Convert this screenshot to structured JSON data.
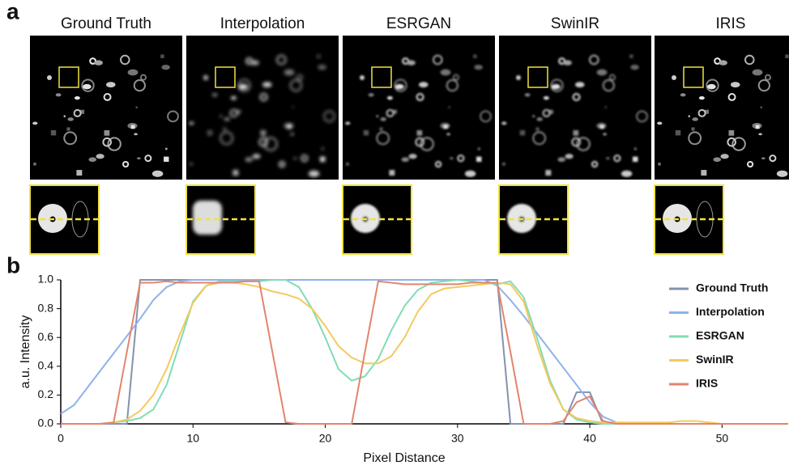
{
  "figure": {
    "panel_a": "a",
    "panel_b": "b",
    "image_titles": [
      "Ground Truth",
      "Interpolation",
      "ESRGAN",
      "SwinIR",
      "IRIS"
    ]
  },
  "chart_data": {
    "type": "line",
    "x_label": "Pixel Distance",
    "y_label": "a.u. Intensity",
    "x": [
      0,
      1,
      2,
      3,
      4,
      5,
      6,
      7,
      8,
      9,
      10,
      11,
      12,
      13,
      14,
      15,
      16,
      17,
      18,
      19,
      20,
      21,
      22,
      23,
      24,
      25,
      26,
      27,
      28,
      29,
      30,
      31,
      32,
      33,
      34,
      35,
      36,
      37,
      38,
      39,
      40,
      41,
      42,
      43,
      44,
      45,
      46,
      47,
      48,
      49,
      50,
      51,
      52,
      53,
      54,
      55
    ],
    "xlim": [
      0,
      55
    ],
    "xticks": [
      0,
      10,
      20,
      30,
      40,
      50
    ],
    "ylim": [
      0,
      1
    ],
    "yticks": [
      {
        "value": 0,
        "label": "0.0"
      },
      0.2,
      0.4,
      0.6,
      0.8,
      {
        "value": 1,
        "label": "1.0"
      }
    ],
    "legend": "upper right",
    "series": [
      {
        "name": "Ground Truth",
        "color": "#8393ad",
        "values": [
          0,
          0,
          0,
          0,
          0,
          0,
          1,
          1,
          1,
          1,
          1,
          1,
          1,
          1,
          1,
          1,
          1,
          1,
          1,
          1,
          1,
          1,
          1,
          1,
          1,
          1,
          1,
          1,
          1,
          1,
          1,
          1,
          1,
          1,
          0,
          0,
          0,
          0,
          0,
          0.22,
          0.22,
          0,
          0,
          0,
          0,
          0,
          0,
          0,
          0,
          0,
          0,
          0,
          0,
          0,
          0,
          0
        ]
      },
      {
        "name": "Interpolation",
        "color": "#8fb2ea",
        "values": [
          0.07,
          0.13,
          0.25,
          0.37,
          0.49,
          0.61,
          0.73,
          0.86,
          0.95,
          0.99,
          1,
          1,
          1,
          1,
          1,
          1,
          1,
          1,
          1,
          1,
          1,
          1,
          1,
          1,
          1,
          1,
          1,
          1,
          1,
          1,
          1,
          1,
          1,
          0.96,
          0.86,
          0.75,
          0.63,
          0.51,
          0.39,
          0.27,
          0.15,
          0.05,
          0.01,
          0,
          0,
          0,
          0,
          0,
          0,
          0,
          0,
          0,
          0,
          0,
          0,
          0
        ]
      },
      {
        "name": "ESRGAN",
        "color": "#82dcb4",
        "values": [
          0,
          0,
          0,
          0,
          0.01,
          0.02,
          0.04,
          0.1,
          0.27,
          0.56,
          0.85,
          0.96,
          0.99,
          0.99,
          0.99,
          0.99,
          1,
          1,
          0.95,
          0.8,
          0.6,
          0.38,
          0.3,
          0.33,
          0.45,
          0.65,
          0.82,
          0.93,
          0.98,
          0.99,
          1,
          0.99,
          0.98,
          0.97,
          0.99,
          0.88,
          0.6,
          0.3,
          0.1,
          0.03,
          0.01,
          0,
          0,
          0,
          0,
          0,
          0,
          0,
          0,
          0,
          0,
          0,
          0,
          0,
          0,
          0
        ]
      },
      {
        "name": "SwinIR",
        "color": "#f4c95e",
        "values": [
          0,
          0,
          0,
          0,
          0.01,
          0.03,
          0.09,
          0.2,
          0.38,
          0.62,
          0.84,
          0.96,
          0.98,
          0.98,
          0.97,
          0.95,
          0.92,
          0.9,
          0.87,
          0.8,
          0.68,
          0.54,
          0.46,
          0.42,
          0.42,
          0.47,
          0.6,
          0.78,
          0.9,
          0.94,
          0.95,
          0.96,
          0.97,
          0.98,
          0.97,
          0.85,
          0.55,
          0.28,
          0.1,
          0.04,
          0.02,
          0.01,
          0.01,
          0.01,
          0.01,
          0.01,
          0.01,
          0.02,
          0.02,
          0.01,
          0,
          0,
          0,
          0,
          0,
          0
        ]
      },
      {
        "name": "IRIS",
        "color": "#e2846e",
        "values": [
          0,
          0,
          0,
          0,
          0.01,
          0.5,
          0.98,
          0.98,
          0.99,
          0.98,
          0.98,
          0.98,
          0.98,
          0.98,
          0.99,
          0.99,
          0.5,
          0.01,
          0,
          0,
          0,
          0,
          0,
          0.5,
          0.99,
          0.98,
          0.97,
          0.97,
          0.97,
          0.97,
          0.97,
          0.98,
          0.98,
          0.98,
          0.5,
          0,
          0,
          0,
          0.02,
          0.15,
          0.19,
          0.02,
          0,
          0,
          0,
          0,
          0,
          0,
          0,
          0,
          0,
          0,
          0,
          0,
          0,
          0
        ]
      }
    ]
  }
}
